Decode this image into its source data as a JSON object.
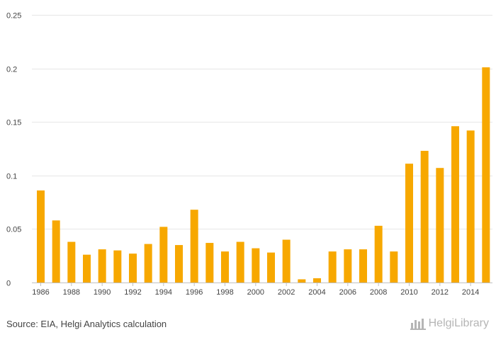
{
  "chart_data": {
    "type": "bar",
    "title": "",
    "xlabel": "",
    "ylabel": "",
    "ylim": [
      0,
      0.25
    ],
    "yticks": [
      "0",
      "0.05",
      "0.1",
      "0.15",
      "0.2",
      "0.25"
    ],
    "ytick_values": [
      0,
      0.05,
      0.1,
      0.15,
      0.2,
      0.25
    ],
    "grid": true,
    "categories": [
      "1986",
      "1987",
      "1988",
      "1989",
      "1990",
      "1991",
      "1992",
      "1993",
      "1994",
      "1995",
      "1996",
      "1997",
      "1998",
      "1999",
      "2000",
      "2001",
      "2002",
      "2003",
      "2004",
      "2005",
      "2006",
      "2007",
      "2008",
      "2009",
      "2010",
      "2011",
      "2012",
      "2013",
      "2014",
      "2015"
    ],
    "xtick_labels": [
      "1986",
      "1988",
      "1990",
      "1992",
      "1994",
      "1996",
      "1998",
      "2000",
      "2002",
      "2004",
      "2006",
      "2008",
      "2010",
      "2012",
      "2014"
    ],
    "values": [
      0.086,
      0.058,
      0.038,
      0.026,
      0.031,
      0.03,
      0.027,
      0.036,
      0.052,
      0.035,
      0.068,
      0.037,
      0.029,
      0.038,
      0.032,
      0.028,
      0.04,
      0.003,
      0.004,
      0.029,
      0.031,
      0.031,
      0.053,
      0.029,
      0.111,
      0.123,
      0.107,
      0.146,
      0.142,
      0.201
    ],
    "bar_color": "#f7a800"
  },
  "footer": {
    "source": "Source: EIA, Helgi Analytics calculation",
    "brand_label": "HelgiLibrary",
    "brand_icon": "helgi-logo-icon"
  },
  "colors": {
    "grid": "#e6e6e6",
    "axis": "#c0c0c0",
    "text": "#444444",
    "brand": "#b5b5b5"
  }
}
